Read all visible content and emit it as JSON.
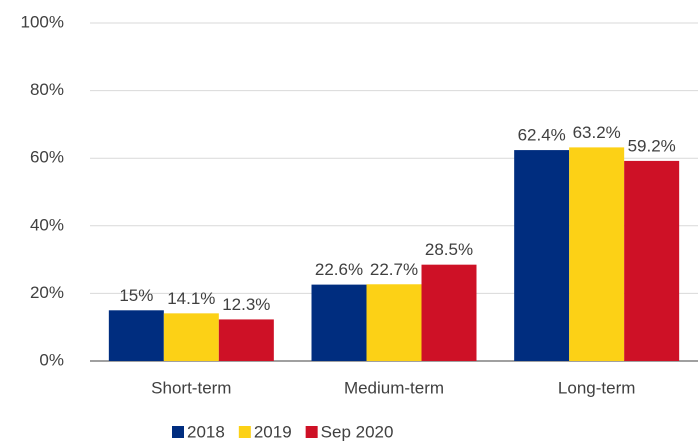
{
  "chart_data": {
    "type": "bar",
    "categories": [
      "Short-term",
      "Medium-term",
      "Long-term"
    ],
    "series": [
      {
        "name": "2018",
        "color": "#002d7f",
        "values": [
          15,
          22.6,
          62.4
        ],
        "value_labels": [
          "15%",
          "22.6%",
          "62.4%"
        ]
      },
      {
        "name": "2019",
        "color": "#fcd116",
        "values": [
          14.1,
          22.7,
          63.2
        ],
        "value_labels": [
          "14.1%",
          "22.7%",
          "63.2%"
        ]
      },
      {
        "name": "Sep 2020",
        "color": "#ce1126",
        "values": [
          12.3,
          28.5,
          59.2
        ],
        "value_labels": [
          "12.3%",
          "28.5%",
          "59.2%"
        ]
      }
    ],
    "ylim": [
      0,
      100
    ],
    "yticks": [
      {
        "value": 0,
        "label": "0%"
      },
      {
        "value": 20,
        "label": "20%"
      },
      {
        "value": 40,
        "label": "40%"
      },
      {
        "value": 60,
        "label": "60%"
      },
      {
        "value": 80,
        "label": "80%"
      },
      {
        "value": 100,
        "label": "100%"
      }
    ],
    "grid": true,
    "legend": "bottom"
  }
}
